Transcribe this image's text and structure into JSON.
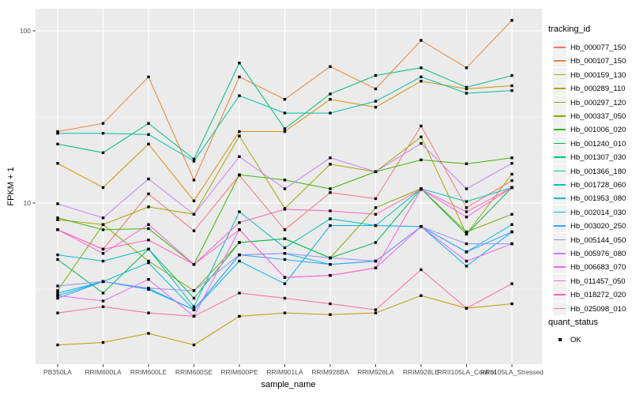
{
  "figure": {
    "panel_bg": "#EBEBEB",
    "grid_color": "#FFFFFF",
    "tick_color": "#333333",
    "tick_label_color": "#4D4D4D"
  },
  "legend": {
    "tracking_title": "tracking_id",
    "quant_title": "quant_status",
    "quant_entries": [
      {
        "label": "OK",
        "symbol": "black-square"
      }
    ]
  },
  "chart_data": {
    "type": "line",
    "title": "",
    "xlabel": "sample_name",
    "ylabel": "FPKM + 1",
    "y_scale": "log10",
    "ylim": [
      1.15,
      135
    ],
    "y_ticks": [
      {
        "label": "10",
        "value": 10
      },
      {
        "label": "100",
        "value": 100
      }
    ],
    "y_minor": [
      3.1623,
      31.6228
    ],
    "grid": true,
    "legend_position": "right",
    "marker": "black-square",
    "categories": [
      "PB350LA",
      "RRIM600LA",
      "RRIM600LE",
      "RRIM600SE",
      "RRIM600PE",
      "RRIM901LA",
      "RRIM928BA",
      "RRIM928LA",
      "RRIM928LE",
      "RRII105LA_Control",
      "RRII105LA_Stressed"
    ],
    "series": [
      {
        "name": "Hb_000077_150",
        "color": "#F8766D",
        "values": [
          7.0,
          5.4,
          11.3,
          6.9,
          14.5,
          7.0,
          11.5,
          10.6,
          28,
          9.4,
          13.5
        ]
      },
      {
        "name": "Hb_000107_150",
        "color": "#EA8331",
        "values": [
          26,
          29,
          54,
          13.6,
          54,
          40,
          62,
          46,
          88,
          61,
          115
        ]
      },
      {
        "name": "Hb_000159_130",
        "color": "#D89000",
        "values": [
          17,
          12.3,
          22,
          10.3,
          26,
          26,
          40,
          36,
          51,
          46,
          48
        ]
      },
      {
        "name": "Hb_000289_110",
        "color": "#C09B00",
        "values": [
          1.5,
          1.55,
          1.75,
          1.5,
          2.2,
          2.3,
          2.25,
          2.3,
          2.9,
          2.45,
          2.6
        ]
      },
      {
        "name": "Hb_000297_120",
        "color": "#A3A500",
        "values": [
          8.0,
          7.5,
          9.5,
          8.6,
          24.5,
          9.3,
          16.8,
          15.2,
          24.2,
          6.6,
          14.7
        ]
      },
      {
        "name": "Hb_000337_050",
        "color": "#7CAE00",
        "values": [
          3.1,
          7.5,
          4.6,
          3.1,
          5.9,
          6.2,
          4.8,
          9.4,
          12.1,
          6.8,
          8.6
        ]
      },
      {
        "name": "Hb_001006_020",
        "color": "#39B600",
        "values": [
          8.2,
          7.0,
          7.1,
          4.4,
          14.6,
          13.6,
          12.1,
          15.2,
          17.8,
          16.9,
          18.3
        ]
      },
      {
        "name": "Hb_001240_010",
        "color": "#00BB4E",
        "values": [
          4.7,
          3.0,
          5.4,
          2.8,
          5.9,
          6.2,
          4.8,
          5.9,
          12.1,
          6.6,
          12.3
        ]
      },
      {
        "name": "Hb_001307_030",
        "color": "#00BF7D",
        "values": [
          22,
          19.6,
          29,
          18,
          65,
          27,
          43,
          55,
          61,
          47,
          55
        ]
      },
      {
        "name": "Hb_001366_180",
        "color": "#00C1A3",
        "values": [
          25.4,
          25.4,
          25,
          17.5,
          42,
          33.3,
          33.3,
          39,
          54,
          43.4,
          45
        ]
      },
      {
        "name": "Hb_001728_060",
        "color": "#00BFC4",
        "values": [
          5.0,
          4.6,
          5.4,
          2.5,
          8.9,
          5.5,
          8.1,
          7.4,
          12.1,
          10.2,
          12.3
        ]
      },
      {
        "name": "Hb_001953_080",
        "color": "#00BAE0",
        "values": [
          3.0,
          3.5,
          4.5,
          2.4,
          5.0,
          5.1,
          4.4,
          4.6,
          7.3,
          5.2,
          7.5
        ]
      },
      {
        "name": "Hb_002014_030",
        "color": "#00B0F6",
        "values": [
          2.9,
          3.5,
          3.15,
          2.4,
          4.6,
          3.4,
          7.4,
          7.4,
          7.3,
          4.3,
          6.8
        ]
      },
      {
        "name": "Hb_003020_250",
        "color": "#35A2FF",
        "values": [
          2.8,
          3.5,
          3.2,
          2.4,
          5.0,
          4.7,
          4.4,
          4.6,
          7.3,
          5.2,
          6.8
        ]
      },
      {
        "name": "Hb_005144_050",
        "color": "#9590FF",
        "values": [
          3.3,
          3.5,
          3.2,
          3.1,
          5.0,
          5.1,
          4.8,
          4.6,
          7.3,
          5.8,
          5.8
        ]
      },
      {
        "name": "Hb_005976_080",
        "color": "#C77CFF",
        "values": [
          9.9,
          8.2,
          13.8,
          8.6,
          18.6,
          12.1,
          18.3,
          15.2,
          22.2,
          12.1,
          17.0
        ]
      },
      {
        "name": "Hb_006683_070",
        "color": "#E76BF3",
        "values": [
          2.9,
          2.7,
          3.6,
          2.2,
          7.0,
          3.7,
          3.8,
          4.2,
          7.3,
          4.6,
          5.8
        ]
      },
      {
        "name": "Hb_011457_050",
        "color": "#FA62DB",
        "values": [
          7.0,
          5.1,
          7.5,
          4.4,
          7.0,
          3.7,
          3.8,
          4.2,
          12.0,
          8.3,
          12.3
        ]
      },
      {
        "name": "Hb_018272_020",
        "color": "#FF62BC",
        "values": [
          7.0,
          5.4,
          6.1,
          4.4,
          7.7,
          9.2,
          9.0,
          8.6,
          12.0,
          8.9,
          12.3
        ]
      },
      {
        "name": "Hb_025098_010",
        "color": "#FF6A98",
        "values": [
          2.3,
          2.5,
          2.3,
          2.2,
          3.0,
          2.8,
          2.6,
          2.4,
          4.1,
          2.45,
          3.4
        ]
      }
    ]
  }
}
